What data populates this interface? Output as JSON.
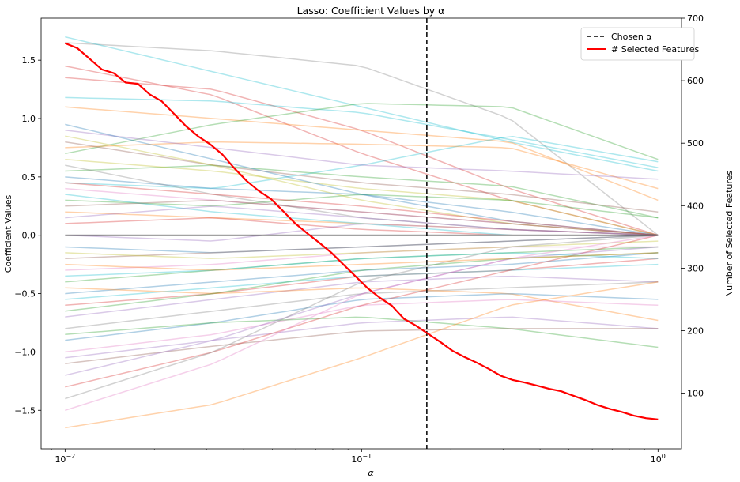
{
  "chart_data": {
    "type": "line",
    "title": "Lasso: Coefficient Values by α",
    "xlabel": "α",
    "ylabel": "Coefficient Values",
    "y2label": "Number of Selected Features",
    "xscale": "log",
    "xlim": [
      0.0083,
      1.2
    ],
    "ylim": [
      -1.83,
      1.86
    ],
    "y2lim": [
      11,
      700
    ],
    "x_ticks": [
      {
        "value": 0.01,
        "base": "10",
        "exp": "−2"
      },
      {
        "value": 0.1,
        "base": "10",
        "exp": "−1"
      },
      {
        "value": 1,
        "base": "10",
        "exp": "0"
      }
    ],
    "y_ticks": [
      {
        "value": 1.5,
        "label": "1.5"
      },
      {
        "value": 1.0,
        "label": "1.0"
      },
      {
        "value": 0.5,
        "label": "0.5"
      },
      {
        "value": 0.0,
        "label": "0.0"
      },
      {
        "value": -0.5,
        "label": "−0.5"
      },
      {
        "value": -1.0,
        "label": "−1.0"
      },
      {
        "value": -1.5,
        "label": "−1.5"
      }
    ],
    "y2_ticks": [
      {
        "value": 100,
        "label": "100"
      },
      {
        "value": 200,
        "label": "200"
      },
      {
        "value": 300,
        "label": "300"
      },
      {
        "value": 400,
        "label": "400"
      },
      {
        "value": 500,
        "label": "500"
      },
      {
        "value": 600,
        "label": "600"
      },
      {
        "value": 700,
        "label": "700"
      }
    ],
    "chosen_alpha": 0.166,
    "legend": {
      "placement": "top-right",
      "entries": [
        {
          "label": "Chosen α",
          "style": "dashed",
          "color": "#000000"
        },
        {
          "label": "# Selected Features",
          "style": "solid",
          "color": "#ff0000"
        }
      ]
    },
    "selected_features": {
      "x": [
        0.01,
        0.011,
        0.0121,
        0.0133,
        0.0146,
        0.016,
        0.0176,
        0.0193,
        0.0212,
        0.0233,
        0.0256,
        0.0281,
        0.0309,
        0.0339,
        0.0372,
        0.0409,
        0.0449,
        0.0494,
        0.0542,
        0.0596,
        0.0655,
        0.0719,
        0.079,
        0.0868,
        0.0954,
        0.1048,
        0.1151,
        0.1265,
        0.139,
        0.1526,
        0.1677,
        0.1842,
        0.2024,
        0.2223,
        0.2442,
        0.2683,
        0.2947,
        0.3237,
        0.3556,
        0.3907,
        0.4292,
        0.4715,
        0.518,
        0.569,
        0.6251,
        0.6866,
        0.7543,
        0.8286,
        0.9103,
        1.0
      ],
      "values": [
        660,
        652,
        635,
        618,
        612,
        597,
        595,
        578,
        567,
        547,
        527,
        511,
        498,
        482,
        460,
        440,
        424,
        411,
        392,
        372,
        356,
        341,
        325,
        306,
        287,
        268,
        253,
        240,
        219,
        208,
        195,
        182,
        168,
        158,
        149,
        139,
        128,
        121,
        117,
        112,
        107,
        103,
        96,
        89,
        81,
        75,
        70,
        64,
        60,
        58
      ]
    },
    "coef_colors": [
      "#1f77b4",
      "#ff7f0e",
      "#2ca02c",
      "#d62728",
      "#9467bd",
      "#8c564b",
      "#e377c2",
      "#7f7f7f",
      "#bcbd22",
      "#17becf"
    ],
    "coef_paths": [
      {
        "color": "#7f7f7f",
        "y": [
          1.65,
          1.58,
          1.45,
          1.0,
          0.0
        ]
      },
      {
        "color": "#17becf",
        "y": [
          1.7,
          1.4,
          1.1,
          0.8,
          0.55
        ]
      },
      {
        "color": "#d62728",
        "y": [
          1.45,
          1.2,
          0.7,
          0.3,
          0.0
        ]
      },
      {
        "color": "#d62728",
        "y": [
          1.35,
          1.25,
          0.9,
          0.4,
          0.0
        ]
      },
      {
        "color": "#17becf",
        "y": [
          1.18,
          1.15,
          1.05,
          0.82,
          0.58
        ]
      },
      {
        "color": "#ff7f0e",
        "y": [
          1.1,
          1.0,
          0.9,
          0.8,
          0.3
        ]
      },
      {
        "color": "#2ca02c",
        "y": [
          0.7,
          0.95,
          1.13,
          1.1,
          0.65
        ]
      },
      {
        "color": "#17becf",
        "y": [
          0.45,
          0.4,
          0.6,
          0.85,
          0.63
        ]
      },
      {
        "color": "#ff7f0e",
        "y": [
          0.75,
          0.8,
          0.78,
          0.75,
          0.4
        ]
      },
      {
        "color": "#9467bd",
        "y": [
          0.9,
          0.75,
          0.6,
          0.55,
          0.48
        ]
      },
      {
        "color": "#2ca02c",
        "y": [
          0.55,
          0.6,
          0.5,
          0.42,
          0.15
        ]
      },
      {
        "color": "#8c564b",
        "y": [
          0.8,
          0.6,
          0.45,
          0.35,
          0.2
        ]
      },
      {
        "color": "#bcbd22",
        "y": [
          0.65,
          0.55,
          0.4,
          0.3,
          0.0
        ]
      },
      {
        "color": "#1f77b4",
        "y": [
          0.5,
          0.4,
          0.35,
          0.2,
          0.0
        ]
      },
      {
        "color": "#e377c2",
        "y": [
          0.4,
          0.3,
          0.2,
          0.1,
          0.0
        ]
      },
      {
        "color": "#2ca02c",
        "y": [
          0.3,
          0.25,
          0.35,
          0.3,
          0.15
        ]
      },
      {
        "color": "#ff7f0e",
        "y": [
          0.2,
          0.15,
          0.1,
          0.05,
          0.0
        ]
      },
      {
        "color": "#7f7f7f",
        "y": [
          0.6,
          0.35,
          0.15,
          0.05,
          0.0
        ]
      },
      {
        "color": "#d62728",
        "y": [
          0.1,
          0.15,
          0.05,
          0.0,
          0.0
        ]
      },
      {
        "color": "#17becf",
        "y": [
          0.35,
          0.2,
          0.1,
          0.0,
          0.0
        ]
      },
      {
        "color": "#9467bd",
        "y": [
          0.0,
          -0.05,
          0.1,
          0.05,
          0.0
        ]
      },
      {
        "color": "#1f77b4",
        "y": [
          -0.1,
          -0.15,
          -0.1,
          -0.05,
          0.0
        ]
      },
      {
        "color": "#8c564b",
        "y": [
          -0.2,
          -0.15,
          -0.1,
          -0.05,
          0.0
        ]
      },
      {
        "color": "#e377c2",
        "y": [
          -0.3,
          -0.25,
          -0.15,
          -0.1,
          -0.1
        ]
      },
      {
        "color": "#bcbd22",
        "y": [
          -0.15,
          -0.2,
          -0.15,
          -0.1,
          -0.05
        ]
      },
      {
        "color": "#2ca02c",
        "y": [
          -0.4,
          -0.3,
          -0.2,
          -0.15,
          -0.1
        ]
      },
      {
        "color": "#1f77b4",
        "y": [
          -0.5,
          -0.4,
          -0.3,
          -0.25,
          -0.15
        ]
      },
      {
        "color": "#d62728",
        "y": [
          -0.6,
          -0.5,
          -0.35,
          -0.3,
          -0.2
        ]
      },
      {
        "color": "#9467bd",
        "y": [
          -0.7,
          -0.55,
          -0.4,
          -0.35,
          -0.4
        ]
      },
      {
        "color": "#7f7f7f",
        "y": [
          -0.8,
          -0.65,
          -0.5,
          -0.45,
          -0.4
        ]
      },
      {
        "color": "#17becf",
        "y": [
          -0.55,
          -0.45,
          -0.35,
          -0.3,
          -0.25
        ]
      },
      {
        "color": "#ff7f0e",
        "y": [
          -0.45,
          -0.5,
          -0.45,
          -0.5,
          -0.73
        ]
      },
      {
        "color": "#1f77b4",
        "y": [
          -0.9,
          -0.75,
          -0.55,
          -0.5,
          -0.55
        ]
      },
      {
        "color": "#e377c2",
        "y": [
          -1.0,
          -0.85,
          -0.6,
          -0.55,
          -0.6
        ]
      },
      {
        "color": "#2ca02c",
        "y": [
          -0.85,
          -0.75,
          -0.7,
          -0.8,
          -0.96
        ]
      },
      {
        "color": "#9467bd",
        "y": [
          -1.05,
          -0.9,
          -0.75,
          -0.7,
          -0.8
        ]
      },
      {
        "color": "#8c564b",
        "y": [
          -1.1,
          -0.95,
          -0.82,
          -0.8,
          -0.8
        ]
      },
      {
        "color": "#d62728",
        "y": [
          -1.3,
          -1.0,
          -0.6,
          -0.3,
          0.0
        ]
      },
      {
        "color": "#9467bd",
        "y": [
          -1.2,
          -0.9,
          -0.5,
          -0.2,
          -0.1
        ]
      },
      {
        "color": "#ff7f0e",
        "y": [
          -1.65,
          -1.45,
          -1.05,
          -0.6,
          -0.4
        ]
      },
      {
        "color": "#e377c2",
        "y": [
          -1.5,
          -1.1,
          -0.5,
          -0.2,
          0.0
        ]
      },
      {
        "color": "#7f7f7f",
        "y": [
          -1.4,
          -1.0,
          -0.4,
          -0.1,
          0.0
        ]
      },
      {
        "color": "#2ca02c",
        "y": [
          -0.65,
          -0.5,
          -0.3,
          -0.2,
          -0.15
        ]
      },
      {
        "color": "#17becf",
        "y": [
          -0.35,
          -0.3,
          -0.2,
          -0.15,
          -0.2
        ]
      },
      {
        "color": "#bcbd22",
        "y": [
          0.85,
          0.6,
          0.3,
          0.1,
          0.0
        ]
      },
      {
        "color": "#1f77b4",
        "y": [
          0.95,
          0.65,
          0.35,
          0.12,
          0.0
        ]
      },
      {
        "color": "#8c564b",
        "y": [
          0.25,
          0.3,
          0.2,
          0.1,
          0.0
        ]
      },
      {
        "color": "#ff7f0e",
        "y": [
          -0.25,
          -0.3,
          -0.25,
          -0.2,
          -0.15
        ]
      },
      {
        "color": "#d62728",
        "y": [
          0.45,
          0.35,
          0.25,
          0.12,
          0.0
        ]
      },
      {
        "color": "#9467bd",
        "y": [
          0.15,
          0.25,
          0.15,
          0.05,
          0.0
        ]
      }
    ]
  }
}
